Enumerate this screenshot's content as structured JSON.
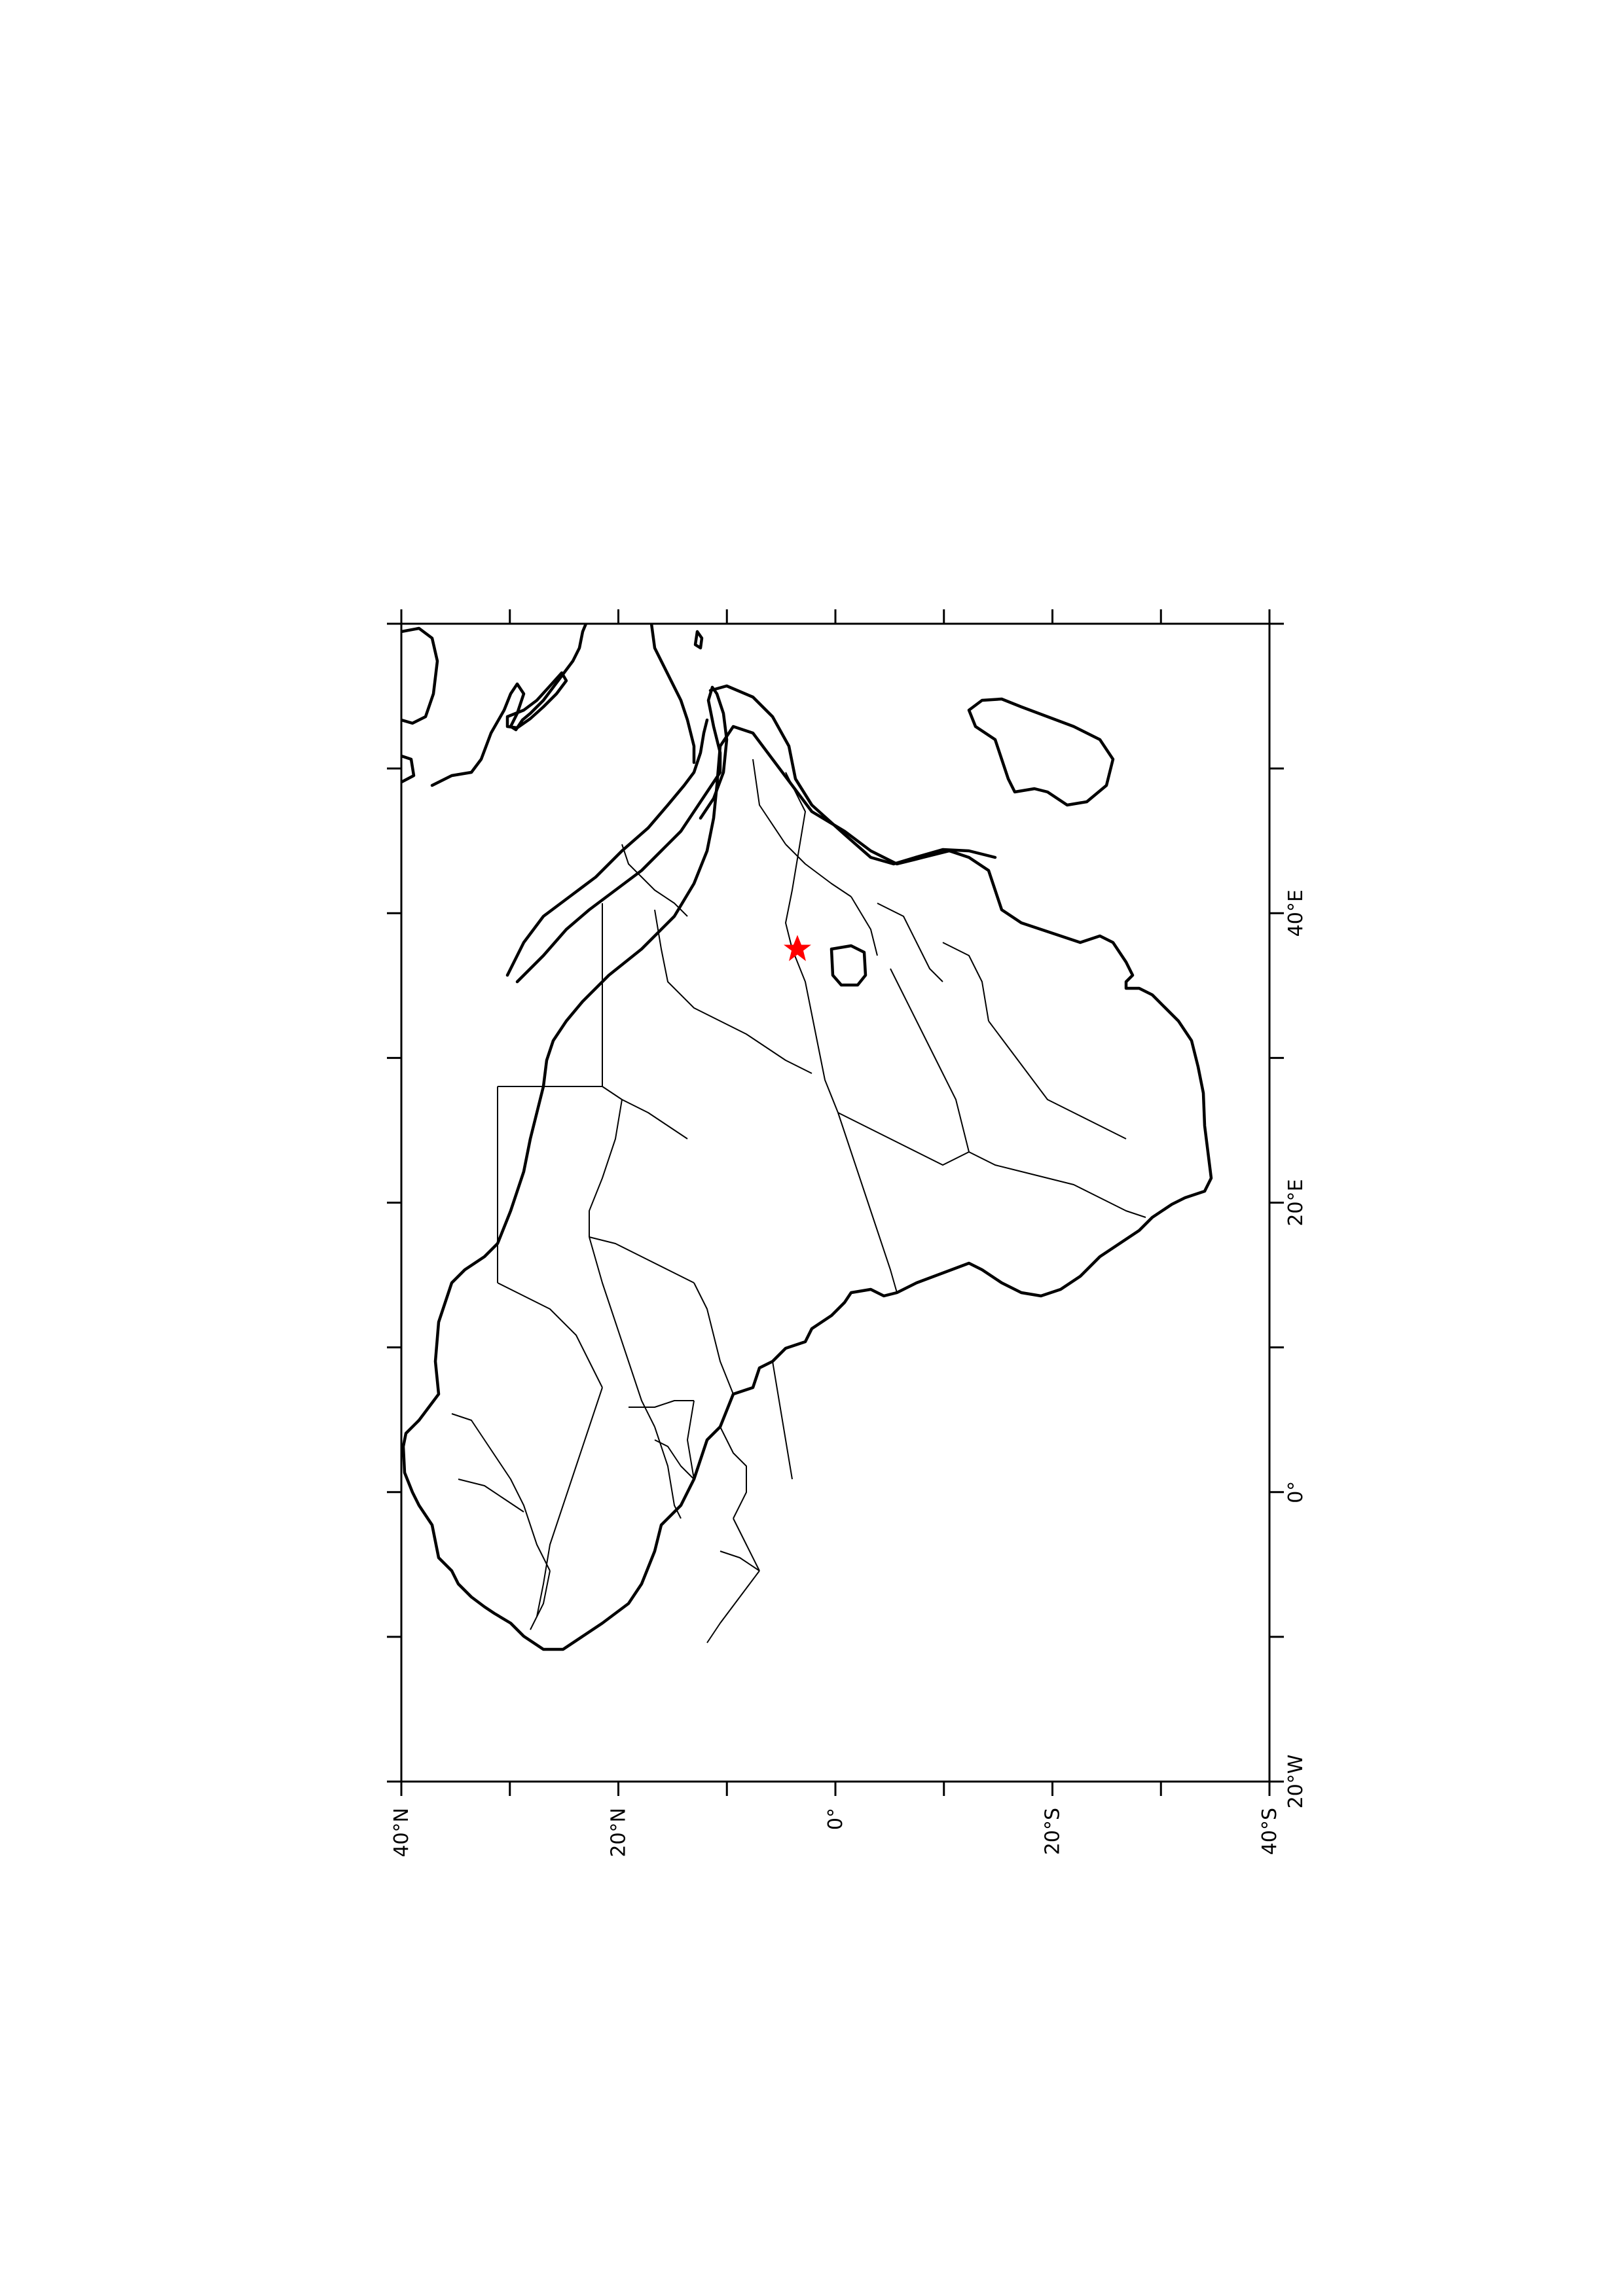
{
  "map": {
    "projection": "equirectangular, rotated 90 degrees clockwise",
    "lat_range": [
      -40,
      40
    ],
    "lon_range": [
      -20,
      60
    ],
    "colors": {
      "background": "#ffffff",
      "outline": "#000000",
      "marker": "#ff0000"
    },
    "bottom_axis": {
      "labels": [
        "40°N",
        "20°N",
        "0°",
        "20°S",
        "40°S"
      ],
      "values": [
        40,
        20,
        0,
        -20,
        -40
      ],
      "minor_tick_every": 10
    },
    "right_axis": {
      "labels": [
        "20°W",
        "0°",
        "20°E",
        "40°E"
      ],
      "values": [
        -20,
        0,
        20,
        40
      ],
      "minor_tick_every": 10
    },
    "marker": {
      "icon": "red-star-icon",
      "lat": 3.5,
      "lon": 37.5
    },
    "grid": false
  }
}
